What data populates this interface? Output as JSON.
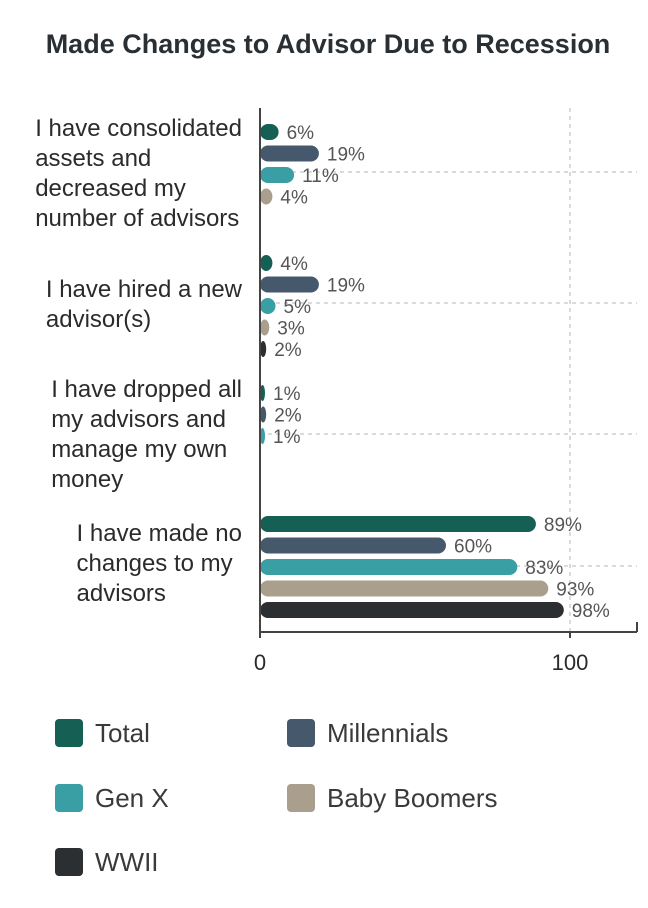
{
  "chart_data": {
    "type": "bar",
    "orientation": "horizontal",
    "title": "Made Changes to Advisor Due to Recession",
    "xlabel": "",
    "ylabel": "",
    "xlim": [
      0,
      120
    ],
    "xticks": [
      0,
      100
    ],
    "grid": true,
    "legend_position": "bottom",
    "value_suffix": "%",
    "categories": [
      [
        "I have consolidated",
        "assets and",
        "decreased my",
        "number of advisors"
      ],
      [
        "I have hired a new",
        "advisor(s)"
      ],
      [
        "I have dropped all",
        "my advisors and",
        "manage my own",
        "money"
      ],
      [
        "I have made no",
        "changes to my",
        "advisors"
      ]
    ],
    "series": [
      {
        "name": "Total",
        "color": "#155f55",
        "values": [
          6,
          4,
          1,
          89
        ]
      },
      {
        "name": "Millennials",
        "color": "#46586b",
        "values": [
          19,
          19,
          2,
          60
        ]
      },
      {
        "name": "Gen X",
        "color": "#3a9ea5",
        "values": [
          11,
          5,
          1,
          83
        ]
      },
      {
        "name": "Baby Boomers",
        "color": "#aa9f8d",
        "values": [
          4,
          3,
          null,
          93
        ]
      },
      {
        "name": "WWII",
        "color": "#2c2f31",
        "values": [
          null,
          2,
          null,
          98
        ]
      }
    ]
  }
}
